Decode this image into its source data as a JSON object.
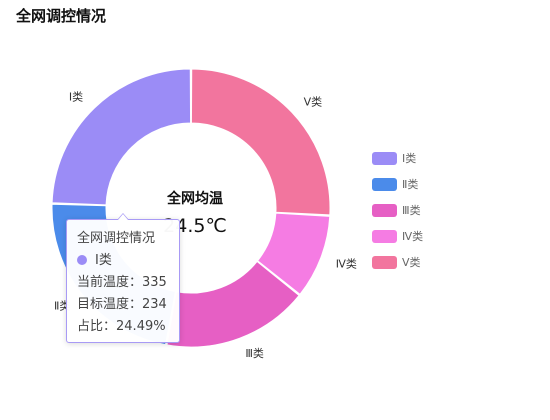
{
  "page": {
    "title": "全网调控情况"
  },
  "center": {
    "title": "全网均温",
    "value": "24.5℃"
  },
  "tooltip": {
    "title": "全网调控情况",
    "series": "Ⅰ类",
    "current_label": "当前温度：",
    "current_value": "335",
    "target_label": "目标温度：",
    "target_value": "234",
    "share_label": "占比：",
    "share_value": "24.49%"
  },
  "chart_data": {
    "type": "pie",
    "title": "全网调控情况",
    "categories": [
      "Ⅰ类",
      "Ⅱ类",
      "Ⅲ类",
      "Ⅳ类",
      "Ⅴ类"
    ],
    "values": [
      335,
      310,
      234,
      135,
      354
    ],
    "colors": [
      "#9b8cf6",
      "#4b8bea",
      "#e65fc4",
      "#f57ce3",
      "#f2759e"
    ],
    "legend": [
      "Ⅰ类",
      "Ⅱ类",
      "Ⅲ类",
      "Ⅳ类",
      "Ⅴ类"
    ],
    "legend_position": "right",
    "donut": true
  }
}
